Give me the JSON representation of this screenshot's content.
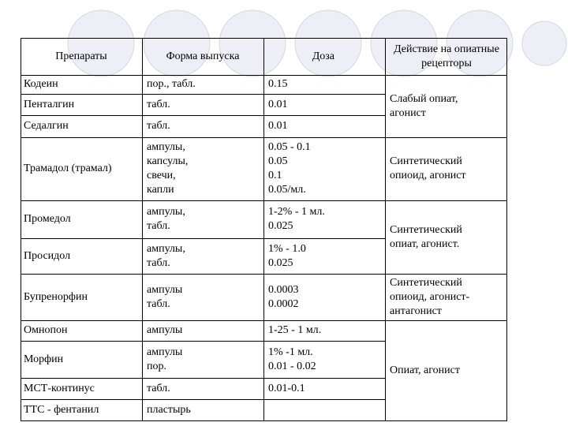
{
  "table": {
    "headers": {
      "drugs": "Препараты",
      "form": "Форма выпуска",
      "dose": "Доза",
      "action": "Действие на опиатные рецепторы"
    },
    "rows": [
      {
        "drug": "Кодеин",
        "form": "пор., табл.",
        "dose": "0.15"
      },
      {
        "drug": "Пенталгин",
        "form": "табл.",
        "dose": "0.01"
      },
      {
        "drug": "Седалгин",
        "form": "табл.",
        "dose": "0.01"
      },
      {
        "drug": "Трамадол (трамал)",
        "form": "ампулы,\nкапсулы,\nсвечи,\nкапли",
        "dose": "0.05 - 0.1\n0.05\n0.1\n0.05/мл."
      },
      {
        "drug": "Промедол",
        "form": "ампулы,\nтабл.",
        "dose": "1-2% - 1 мл.\n0.025"
      },
      {
        "drug": "Просидол",
        "form": "ампулы,\nтабл.",
        "dose": "1% - 1.0\n0.025"
      },
      {
        "drug": "Бупренорфин",
        "form": "ампулы\nтабл.",
        "dose": "0.0003\n0.0002"
      },
      {
        "drug": "Омнопон",
        "form": "ампулы",
        "dose": "1-25 - 1 мл."
      },
      {
        "drug": "Морфин",
        "form": "ампулы\nпор.",
        "dose": "1% -1 мл.\n0.01 - 0.02"
      },
      {
        "drug": "МСТ-континус",
        "form": "табл.",
        "dose": "0.01-0.1"
      },
      {
        "drug": "ТТС - фентанил",
        "form": "пластырь",
        "dose": ""
      }
    ],
    "actions": [
      "Слабый опиат,\nагонист",
      "Синтетический\nопиоид, агонист",
      "Синтетический\nопиат, агонист.",
      "Синтетический\nопиоид, агонист-\nантагонист",
      "Опиат, агонист"
    ]
  }
}
